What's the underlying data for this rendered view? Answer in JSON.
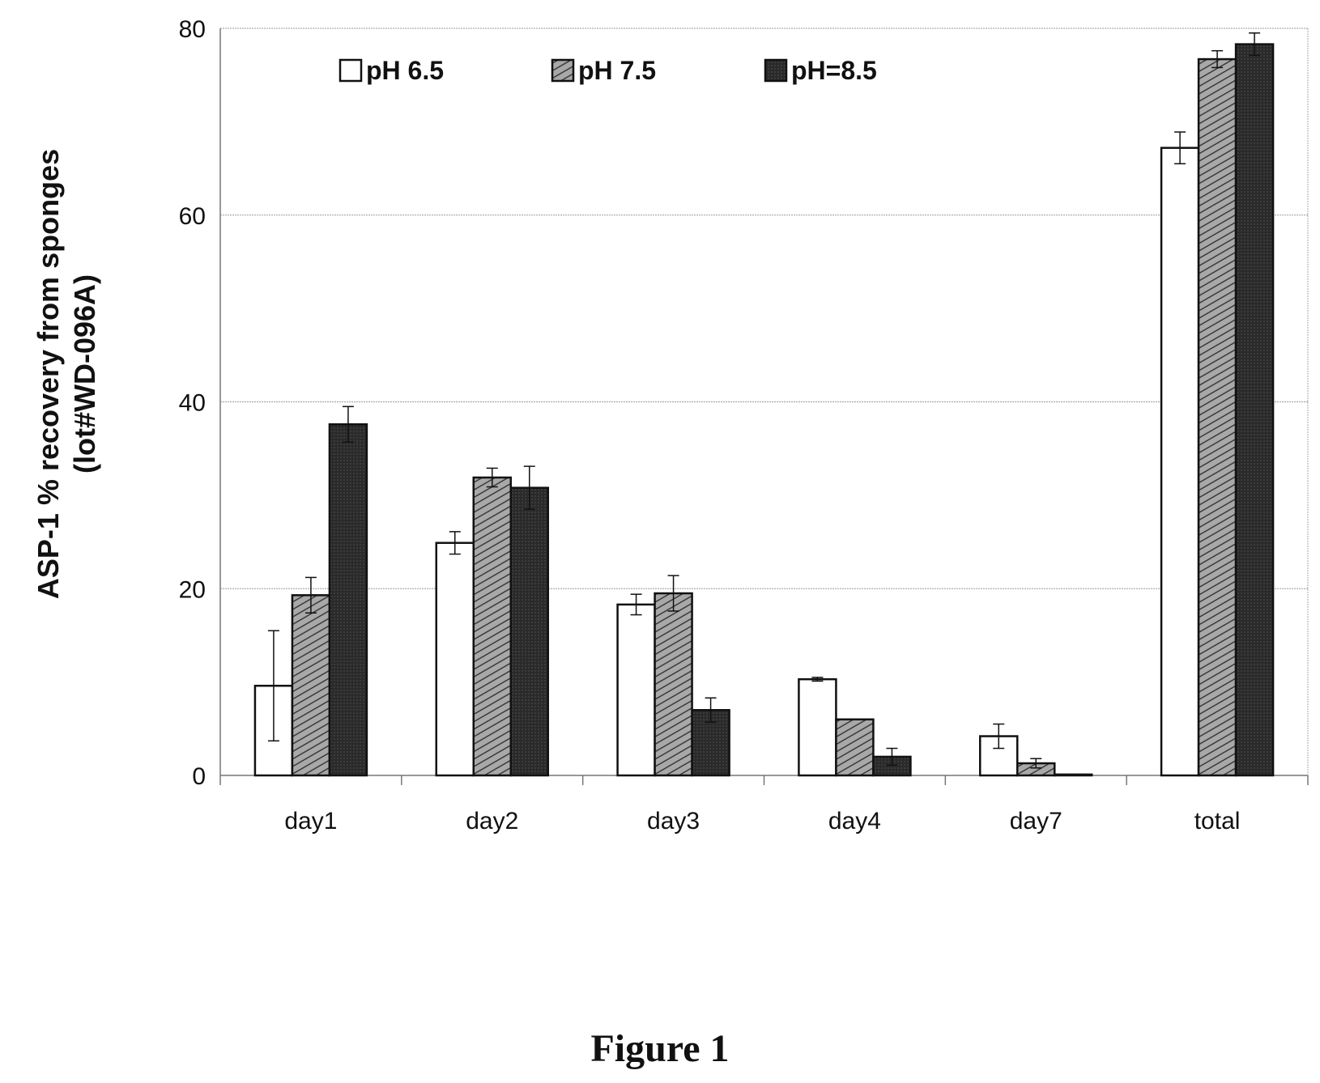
{
  "figure_caption": "Figure 1",
  "chart_data": {
    "type": "bar",
    "title": "",
    "ylabel_line1": "ASP-1 %  recovery from  sponges",
    "ylabel_line2": "(lot#WD-096A)",
    "xlabel": "",
    "ylim": [
      0,
      80
    ],
    "yticks": [
      "0",
      "20",
      "40",
      "60",
      "80"
    ],
    "grid": true,
    "legend_position": "top",
    "categories": [
      "day1",
      "day2",
      "day3",
      "day4",
      "day7",
      "total"
    ],
    "series": [
      {
        "name": "pH 6.5",
        "color": "#ffffff",
        "pattern": "none",
        "values": [
          9.6,
          24.9,
          18.3,
          10.3,
          4.2,
          67.2
        ],
        "errors": [
          5.9,
          1.2,
          1.1,
          0.2,
          1.3,
          1.7
        ]
      },
      {
        "name": "pH 7.5",
        "color": "#9a9a9a",
        "pattern": "hatched",
        "values": [
          19.3,
          31.9,
          19.5,
          6.0,
          1.3,
          76.7
        ],
        "errors": [
          1.9,
          1.0,
          1.9,
          0.0,
          0.5,
          0.9
        ]
      },
      {
        "name": "pH=8.5",
        "color": "#2e2e2e",
        "pattern": "solid",
        "values": [
          37.6,
          30.8,
          7.0,
          2.0,
          0.1,
          78.3
        ],
        "errors": [
          1.9,
          2.3,
          1.3,
          0.9,
          0.0,
          1.2
        ]
      }
    ]
  }
}
